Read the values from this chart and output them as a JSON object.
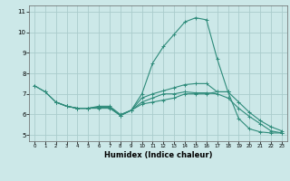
{
  "title": "",
  "xlabel": "Humidex (Indice chaleur)",
  "ylabel": "",
  "background_color": "#cce8e8",
  "grid_color": "#aacccc",
  "line_color": "#2e8b7a",
  "xlim": [
    -0.5,
    23.5
  ],
  "ylim": [
    4.7,
    11.3
  ],
  "xticks": [
    0,
    1,
    2,
    3,
    4,
    5,
    6,
    7,
    8,
    9,
    10,
    11,
    12,
    13,
    14,
    15,
    16,
    17,
    18,
    19,
    20,
    21,
    22,
    23
  ],
  "yticks": [
    5,
    6,
    7,
    8,
    9,
    10,
    11
  ],
  "line1_x": [
    0,
    1,
    2,
    3,
    4,
    5,
    6,
    7,
    8,
    9,
    10,
    11,
    12,
    13,
    14,
    15,
    16,
    17,
    18
  ],
  "line1_y": [
    7.4,
    7.1,
    6.6,
    6.4,
    6.3,
    6.3,
    6.4,
    6.4,
    6.0,
    6.2,
    6.5,
    6.6,
    6.7,
    6.8,
    7.0,
    7.0,
    7.0,
    7.1,
    7.1
  ],
  "line2_x": [
    0,
    1,
    2,
    3,
    4,
    5,
    6,
    7,
    8,
    9,
    10,
    11,
    12,
    13,
    14,
    15,
    16,
    17,
    18,
    19,
    20,
    21,
    22,
    23
  ],
  "line2_y": [
    7.4,
    7.1,
    6.6,
    6.4,
    6.3,
    6.3,
    6.3,
    6.3,
    5.95,
    6.2,
    7.0,
    8.5,
    9.3,
    9.9,
    10.5,
    10.7,
    10.6,
    8.7,
    7.1,
    5.8,
    5.3,
    5.15,
    5.1,
    5.1
  ],
  "line3_x": [
    2,
    3,
    4,
    5,
    6,
    7,
    8,
    9,
    10,
    11,
    12,
    13,
    14,
    15,
    16,
    17,
    18,
    19,
    20,
    21,
    22,
    23
  ],
  "line3_y": [
    6.6,
    6.4,
    6.3,
    6.3,
    6.35,
    6.35,
    5.95,
    6.2,
    6.8,
    7.0,
    7.15,
    7.3,
    7.45,
    7.5,
    7.5,
    7.1,
    7.1,
    6.6,
    6.1,
    5.7,
    5.4,
    5.2
  ],
  "line4_x": [
    2,
    3,
    4,
    5,
    6,
    7,
    8,
    9,
    10,
    11,
    12,
    13,
    14,
    15,
    16,
    17,
    18,
    19,
    20,
    21,
    22,
    23
  ],
  "line4_y": [
    6.6,
    6.4,
    6.3,
    6.3,
    6.35,
    6.35,
    5.95,
    6.2,
    6.6,
    6.8,
    7.0,
    7.0,
    7.1,
    7.05,
    7.05,
    7.0,
    6.8,
    6.3,
    5.9,
    5.55,
    5.2,
    5.1
  ]
}
